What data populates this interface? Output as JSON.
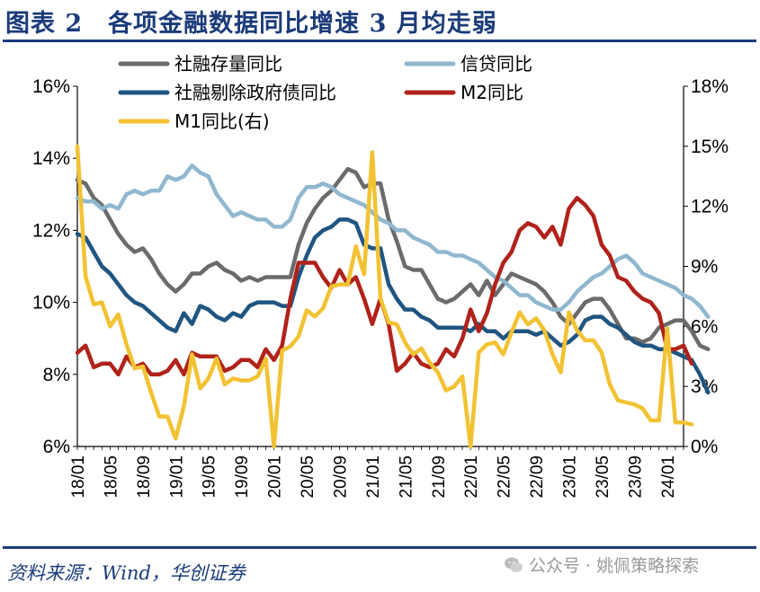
{
  "header": {
    "title": "图表 2　各项金融数据同比增速 3 月均走弱"
  },
  "footer": {
    "source": "资料来源：Wind，华创证券",
    "watermark": "公众号 · 姚佩策略探索"
  },
  "chart_data": {
    "type": "line",
    "title": "各项金融数据同比增速 3 月均走弱",
    "xlabel": "",
    "ylabel": "",
    "y_left": {
      "ylim": [
        6,
        16
      ],
      "ticks": [
        6,
        8,
        10,
        12,
        14,
        16
      ],
      "unit": "%"
    },
    "y_right": {
      "ylim": [
        0,
        18
      ],
      "ticks": [
        0,
        3,
        6,
        9,
        12,
        15,
        18
      ],
      "unit": "%"
    },
    "x_ticks": [
      "18/01",
      "18/05",
      "18/09",
      "19/01",
      "19/05",
      "19/09",
      "20/01",
      "20/05",
      "20/09",
      "21/01",
      "21/05",
      "21/09",
      "22/01",
      "22/05",
      "22/09",
      "23/01",
      "23/05",
      "23/09",
      "24/01"
    ],
    "x_start": "2018-01",
    "x_end": "2024-03",
    "legend_position": "top",
    "grid": false,
    "series": [
      {
        "name": "社融存量同比",
        "color": "#6b6b6b",
        "axis": "left",
        "values": [
          13.4,
          13.3,
          12.9,
          12.7,
          12.3,
          11.9,
          11.6,
          11.4,
          11.5,
          11.2,
          10.8,
          10.5,
          10.3,
          10.5,
          10.8,
          10.8,
          11.0,
          11.1,
          10.9,
          10.8,
          10.6,
          10.7,
          10.6,
          10.7,
          10.7,
          10.7,
          10.7,
          11.6,
          12.2,
          12.6,
          12.9,
          13.1,
          13.4,
          13.7,
          13.6,
          13.2,
          13.3,
          13.3,
          12.3,
          11.7,
          11.0,
          10.9,
          10.9,
          10.5,
          10.1,
          10.0,
          10.1,
          10.3,
          10.5,
          10.2,
          10.6,
          10.2,
          10.5,
          10.8,
          10.7,
          10.6,
          10.5,
          10.3,
          10.0,
          9.6,
          9.4,
          9.7,
          10.0,
          10.1,
          10.1,
          9.8,
          9.4,
          9.0,
          9.0,
          8.9,
          9.0,
          9.3,
          9.4,
          9.5,
          9.5,
          9.2,
          8.8,
          8.7
        ]
      },
      {
        "name": "信贷同比",
        "color": "#8fb8cf",
        "axis": "left",
        "values": [
          12.9,
          12.8,
          12.8,
          12.6,
          12.7,
          12.6,
          13.0,
          13.1,
          13.0,
          13.1,
          13.1,
          13.5,
          13.4,
          13.5,
          13.8,
          13.6,
          13.5,
          13.0,
          12.7,
          12.4,
          12.5,
          12.4,
          12.3,
          12.3,
          12.1,
          12.1,
          12.3,
          12.9,
          13.2,
          13.2,
          13.3,
          13.2,
          13.0,
          12.9,
          12.8,
          12.7,
          12.5,
          12.3,
          12.2,
          12.0,
          12.0,
          11.8,
          11.7,
          11.6,
          11.4,
          11.4,
          11.3,
          11.3,
          11.2,
          11.1,
          10.9,
          10.7,
          10.6,
          10.4,
          10.2,
          10.2,
          10.0,
          9.9,
          9.8,
          9.8,
          10.0,
          10.3,
          10.5,
          10.7,
          10.8,
          11.0,
          11.2,
          11.3,
          11.1,
          10.8,
          10.7,
          10.6,
          10.5,
          10.4,
          10.2,
          10.1,
          9.9,
          9.6
        ]
      },
      {
        "name": "社融剔除政府债同比",
        "color": "#1f5580",
        "axis": "left",
        "values": [
          11.9,
          11.8,
          11.4,
          11.0,
          10.8,
          10.5,
          10.2,
          10.0,
          9.9,
          9.7,
          9.5,
          9.3,
          9.2,
          9.7,
          9.4,
          9.9,
          9.8,
          9.6,
          9.5,
          9.7,
          9.6,
          9.9,
          10.0,
          10.0,
          10.0,
          9.9,
          9.9,
          10.7,
          11.3,
          11.8,
          12.0,
          12.1,
          12.3,
          12.3,
          12.2,
          11.6,
          11.5,
          11.5,
          10.5,
          10.1,
          9.8,
          9.8,
          9.6,
          9.5,
          9.3,
          9.3,
          9.3,
          9.3,
          9.2,
          9.4,
          9.2,
          9.2,
          9.0,
          9.2,
          9.2,
          9.2,
          9.1,
          9.2,
          9.0,
          8.8,
          8.9,
          9.1,
          9.5,
          9.6,
          9.6,
          9.4,
          9.3,
          9.1,
          8.9,
          8.8,
          8.8,
          8.7,
          8.7,
          8.6,
          8.5,
          8.4,
          8.0,
          7.5
        ]
      },
      {
        "name": "M2同比",
        "color": "#b0221a",
        "axis": "left",
        "values": [
          8.6,
          8.8,
          8.2,
          8.3,
          8.3,
          8.0,
          8.5,
          8.2,
          8.3,
          8.0,
          8.0,
          8.1,
          8.4,
          8.0,
          8.6,
          8.5,
          8.5,
          8.5,
          8.1,
          8.2,
          8.4,
          8.4,
          8.2,
          8.7,
          8.4,
          8.8,
          10.1,
          11.1,
          11.1,
          11.1,
          10.7,
          10.4,
          10.9,
          10.5,
          10.7,
          10.1,
          9.4,
          10.1,
          9.4,
          8.1,
          8.3,
          8.6,
          8.3,
          8.2,
          8.3,
          8.7,
          8.5,
          9.0,
          9.8,
          9.2,
          9.7,
          10.5,
          11.1,
          11.4,
          12.0,
          12.2,
          12.1,
          11.8,
          12.1,
          11.6,
          12.6,
          12.9,
          12.7,
          12.4,
          11.6,
          11.3,
          10.7,
          10.6,
          10.3,
          10.1,
          10.0,
          9.7,
          8.7,
          8.7,
          8.8,
          8.3
        ]
      },
      {
        "name": "M1同比(右)",
        "color": "#f2c232",
        "axis": "right",
        "values": [
          15.0,
          8.5,
          7.1,
          7.2,
          6.0,
          6.6,
          5.1,
          3.9,
          4.0,
          2.7,
          1.5,
          1.5,
          0.4,
          2.0,
          4.6,
          2.9,
          3.4,
          4.4,
          3.1,
          3.4,
          3.3,
          3.3,
          3.5,
          4.4,
          0.0,
          4.8,
          5.0,
          5.5,
          6.8,
          6.5,
          6.9,
          8.0,
          8.1,
          8.1,
          10.0,
          8.6,
          14.7,
          7.4,
          6.2,
          6.1,
          5.2,
          4.6,
          4.9,
          4.2,
          3.7,
          2.8,
          3.0,
          3.5,
          0.0,
          4.7,
          5.1,
          5.2,
          4.6,
          5.7,
          6.7,
          6.1,
          6.4,
          5.8,
          4.6,
          3.7,
          6.7,
          5.8,
          5.3,
          5.3,
          4.7,
          3.1,
          2.3,
          2.2,
          2.1,
          1.9,
          1.3,
          1.3,
          5.9,
          1.2,
          1.2,
          1.1
        ]
      }
    ]
  }
}
